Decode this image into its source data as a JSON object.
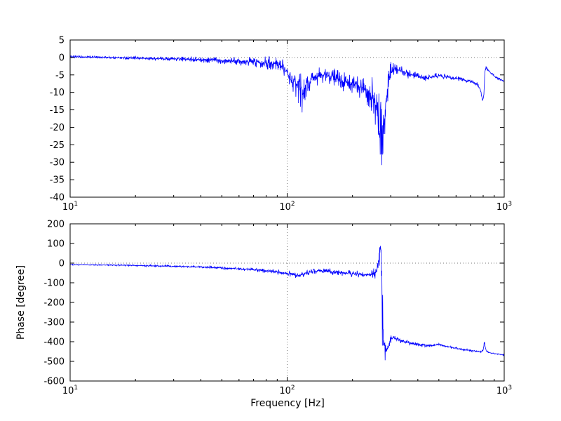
{
  "figure": {
    "background": "#ffffff",
    "line_color": "#0000ff",
    "axes_color": "#000000",
    "grid_color": "#777777"
  },
  "chart_data": [
    {
      "type": "line",
      "x_scale": "log",
      "xlim": [
        10,
        1000
      ],
      "ylim": [
        -40,
        5
      ],
      "yticks": [
        5,
        0,
        -5,
        -10,
        -15,
        -20,
        -25,
        -30,
        -35,
        -40
      ],
      "xticks": [
        {
          "value": 10,
          "label_base": "10",
          "label_exp": "1"
        },
        {
          "value": 100,
          "label_base": "10",
          "label_exp": "2"
        },
        {
          "value": 1000,
          "label_base": "10",
          "label_exp": "3"
        }
      ],
      "grid_x": [
        100
      ],
      "grid_y": [
        0
      ],
      "xlabel": "",
      "ylabel": "",
      "legend": "none",
      "series": [
        {
          "name": "magnitude-response-dB",
          "color": "#0000ff",
          "points": [
            [
              10,
              0.2,
              0.3
            ],
            [
              12,
              0.1,
              0.3
            ],
            [
              15,
              0,
              0.3
            ],
            [
              20,
              -0.2,
              0.4
            ],
            [
              25,
              -0.3,
              0.4
            ],
            [
              30,
              -0.4,
              0.5
            ],
            [
              40,
              -0.6,
              0.7
            ],
            [
              50,
              -0.8,
              0.8
            ],
            [
              60,
              -1,
              1
            ],
            [
              70,
              -1.2,
              1.2
            ],
            [
              80,
              -1.4,
              1.5
            ],
            [
              90,
              -1.8,
              1.6
            ],
            [
              95,
              -2.5,
              1.6
            ],
            [
              100,
              -4.5,
              2
            ],
            [
              105,
              -6.5,
              2.2
            ],
            [
              110,
              -8,
              3
            ],
            [
              115,
              -9,
              4
            ],
            [
              118,
              -10,
              5
            ],
            [
              122,
              -8.5,
              3
            ],
            [
              130,
              -6.5,
              2.2
            ],
            [
              140,
              -5.2,
              2
            ],
            [
              150,
              -5,
              2
            ],
            [
              160,
              -5.5,
              2
            ],
            [
              170,
              -6,
              2
            ],
            [
              180,
              -6.8,
              2.2
            ],
            [
              190,
              -7.4,
              2.2
            ],
            [
              200,
              -7.8,
              2.4
            ],
            [
              210,
              -8,
              2.5
            ],
            [
              220,
              -8.4,
              2.8
            ],
            [
              230,
              -9,
              3
            ],
            [
              240,
              -10,
              4
            ],
            [
              250,
              -12,
              5
            ],
            [
              258,
              -15,
              6
            ],
            [
              264,
              -19,
              8
            ],
            [
              270,
              -24,
              10
            ],
            [
              276,
              -21,
              9
            ],
            [
              282,
              -16,
              6
            ],
            [
              288,
              -11,
              5
            ],
            [
              294,
              -7,
              3.5
            ],
            [
              300,
              -4.5,
              2.5
            ],
            [
              310,
              -3.5,
              1.8
            ],
            [
              320,
              -3.4,
              1.5
            ],
            [
              340,
              -4,
              1.3
            ],
            [
              360,
              -4.6,
              1.1
            ],
            [
              380,
              -5.2,
              1
            ],
            [
              400,
              -5.6,
              1
            ],
            [
              430,
              -6,
              0.9
            ],
            [
              460,
              -5.6,
              0.8
            ],
            [
              500,
              -5.2,
              0.7
            ],
            [
              550,
              -5.6,
              0.6
            ],
            [
              600,
              -6,
              0.5
            ],
            [
              650,
              -6.4,
              0.5
            ],
            [
              700,
              -6.8,
              0.5
            ],
            [
              750,
              -7.6,
              0.5
            ],
            [
              780,
              -9.5,
              0.5
            ],
            [
              795,
              -12.5,
              0.6
            ],
            [
              805,
              -11,
              0.5
            ],
            [
              815,
              -4,
              0.4
            ],
            [
              825,
              -2.8,
              0.3
            ],
            [
              840,
              -3.6,
              0.3
            ],
            [
              870,
              -4.6,
              0.3
            ],
            [
              900,
              -5.4,
              0.3
            ],
            [
              950,
              -6.2,
              0.3
            ],
            [
              1000,
              -6.8,
              0.3
            ]
          ]
        }
      ]
    },
    {
      "type": "line",
      "x_scale": "log",
      "xlim": [
        10,
        1000
      ],
      "ylim": [
        -600,
        200
      ],
      "yticks": [
        200,
        100,
        0,
        -100,
        -200,
        -300,
        -400,
        -500,
        -600
      ],
      "xticks": [
        {
          "value": 10,
          "label_base": "10",
          "label_exp": "1"
        },
        {
          "value": 100,
          "label_base": "10",
          "label_exp": "2"
        },
        {
          "value": 1000,
          "label_base": "10",
          "label_exp": "3"
        }
      ],
      "grid_x": [
        100
      ],
      "grid_y": [
        0
      ],
      "xlabel": "Frequency [Hz]",
      "ylabel": "Phase [degree]",
      "legend": "none",
      "series": [
        {
          "name": "phase-response-degree",
          "color": "#0000ff",
          "points": [
            [
              10,
              -8,
              2
            ],
            [
              12,
              -9,
              2
            ],
            [
              15,
              -10,
              3
            ],
            [
              20,
              -12,
              3
            ],
            [
              25,
              -14,
              4
            ],
            [
              30,
              -16,
              4
            ],
            [
              40,
              -20,
              5
            ],
            [
              50,
              -24,
              6
            ],
            [
              60,
              -29,
              7
            ],
            [
              70,
              -34,
              8
            ],
            [
              80,
              -39,
              9
            ],
            [
              90,
              -44,
              10
            ],
            [
              95,
              -48,
              10
            ],
            [
              100,
              -53,
              11
            ],
            [
              105,
              -58,
              11
            ],
            [
              110,
              -61,
              12
            ],
            [
              115,
              -60,
              12
            ],
            [
              120,
              -56,
              12
            ],
            [
              125,
              -50,
              12
            ],
            [
              130,
              -44,
              12
            ],
            [
              140,
              -38,
              12
            ],
            [
              150,
              -40,
              12
            ],
            [
              160,
              -44,
              12
            ],
            [
              170,
              -47,
              12
            ],
            [
              180,
              -50,
              13
            ],
            [
              190,
              -52,
              13
            ],
            [
              200,
              -54,
              14
            ],
            [
              210,
              -55,
              15
            ],
            [
              220,
              -57,
              16
            ],
            [
              230,
              -59,
              18
            ],
            [
              240,
              -60,
              20
            ],
            [
              250,
              -55,
              25
            ],
            [
              258,
              -40,
              35
            ],
            [
              263,
              0,
              60
            ],
            [
              268,
              80,
              50
            ],
            [
              271,
              60,
              90
            ],
            [
              274,
              -250,
              140
            ],
            [
              278,
              -400,
              70
            ],
            [
              283,
              -440,
              50
            ],
            [
              288,
              -445,
              35
            ],
            [
              293,
              -420,
              28
            ],
            [
              298,
              -395,
              22
            ],
            [
              305,
              -380,
              16
            ],
            [
              315,
              -382,
              13
            ],
            [
              330,
              -390,
              11
            ],
            [
              350,
              -400,
              10
            ],
            [
              370,
              -407,
              9
            ],
            [
              390,
              -412,
              8
            ],
            [
              420,
              -417,
              8
            ],
            [
              450,
              -420,
              7
            ],
            [
              480,
              -418,
              6
            ],
            [
              500,
              -415,
              6
            ],
            [
              540,
              -423,
              5
            ],
            [
              580,
              -430,
              5
            ],
            [
              620,
              -436,
              4
            ],
            [
              660,
              -441,
              4
            ],
            [
              700,
              -445,
              4
            ],
            [
              750,
              -450,
              4
            ],
            [
              780,
              -452,
              4
            ],
            [
              800,
              -445,
              5
            ],
            [
              810,
              -398,
              6
            ],
            [
              818,
              -428,
              4
            ],
            [
              828,
              -448,
              3
            ],
            [
              850,
              -455,
              3
            ],
            [
              900,
              -460,
              3
            ],
            [
              950,
              -464,
              3
            ],
            [
              1000,
              -467,
              3
            ]
          ]
        }
      ]
    }
  ]
}
